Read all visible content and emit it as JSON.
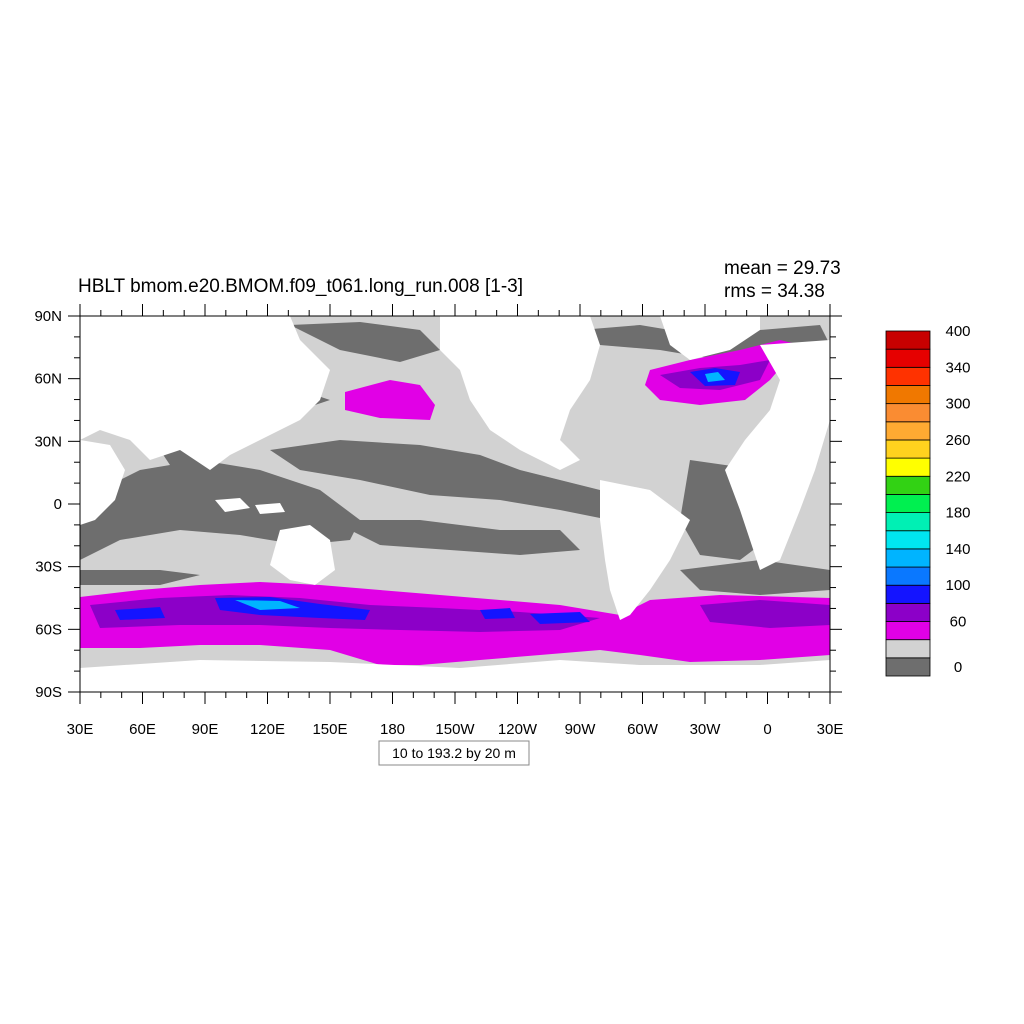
{
  "title": "HBLT bmom.e20.BMOM.f09_t061.long_run.008 [1-3]",
  "stats": {
    "mean": "mean = 29.73",
    "rms": "rms = 34.38"
  },
  "footer": "10 to 193.2 by 20 m",
  "lat_labels": [
    "90N",
    "60N",
    "30N",
    "0",
    "30S",
    "60S",
    "90S"
  ],
  "lon_labels": [
    "30E",
    "60E",
    "90E",
    "120E",
    "150E",
    "180",
    "150W",
    "120W",
    "90W",
    "60W",
    "30W",
    "0",
    "30E"
  ],
  "colorbar": {
    "colors": [
      "#6e6e6e",
      "#d2d2d2",
      "#e100e6",
      "#8c00c8",
      "#1414ff",
      "#0a78ff",
      "#00b4ff",
      "#00e6f0",
      "#00f0b4",
      "#00f050",
      "#32d214",
      "#ffff00",
      "#ffd21e",
      "#ffaa32",
      "#fa8c32",
      "#f07800",
      "#ff3200",
      "#e60000",
      "#c80000"
    ],
    "labels": [
      "0",
      "60",
      "100",
      "140",
      "180",
      "220",
      "260",
      "300",
      "340",
      "400"
    ]
  },
  "legend": {
    "land": "#ffffff"
  }
}
